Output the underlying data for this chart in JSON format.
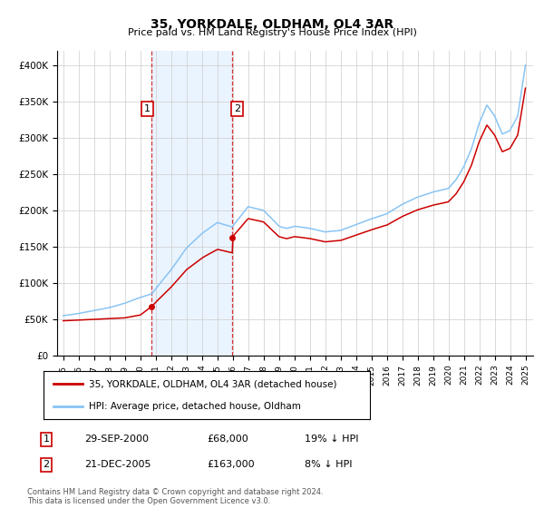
{
  "title": "35, YORKDALE, OLDHAM, OL4 3AR",
  "subtitle": "Price paid vs. HM Land Registry's House Price Index (HPI)",
  "hpi_color": "#89c4f4",
  "price_color": "#cc0000",
  "sale1_date_num": 2000.75,
  "sale1_price": 68000,
  "sale1_label": "1",
  "sale2_date_num": 2005.97,
  "sale2_price": 163000,
  "sale2_label": "2",
  "ylim": [
    0,
    420000
  ],
  "xlim_start": 1994.6,
  "xlim_end": 2025.5,
  "ytick_values": [
    0,
    50000,
    100000,
    150000,
    200000,
    250000,
    300000,
    350000,
    400000
  ],
  "ytick_labels": [
    "£0",
    "£50K",
    "£100K",
    "£150K",
    "£200K",
    "£250K",
    "£300K",
    "£350K",
    "£400K"
  ],
  "xtick_years": [
    1995,
    1996,
    1997,
    1998,
    1999,
    2000,
    2001,
    2002,
    2003,
    2004,
    2005,
    2006,
    2007,
    2008,
    2009,
    2010,
    2011,
    2012,
    2013,
    2014,
    2015,
    2016,
    2017,
    2018,
    2019,
    2020,
    2021,
    2022,
    2023,
    2024,
    2025
  ],
  "legend1_label": "35, YORKDALE, OLDHAM, OL4 3AR (detached house)",
  "legend2_label": "HPI: Average price, detached house, Oldham",
  "note1_num": "1",
  "note1_date": "29-SEP-2000",
  "note1_price": "£68,000",
  "note1_hpi": "19% ↓ HPI",
  "note2_num": "2",
  "note2_date": "21-DEC-2005",
  "note2_price": "£163,000",
  "note2_hpi": "8% ↓ HPI",
  "footer": "Contains HM Land Registry data © Crown copyright and database right 2024.\nThis data is licensed under the Open Government Licence v3.0.",
  "background_color": "#ffffff",
  "grid_color": "#cccccc",
  "shade_color": "#ddeeff"
}
